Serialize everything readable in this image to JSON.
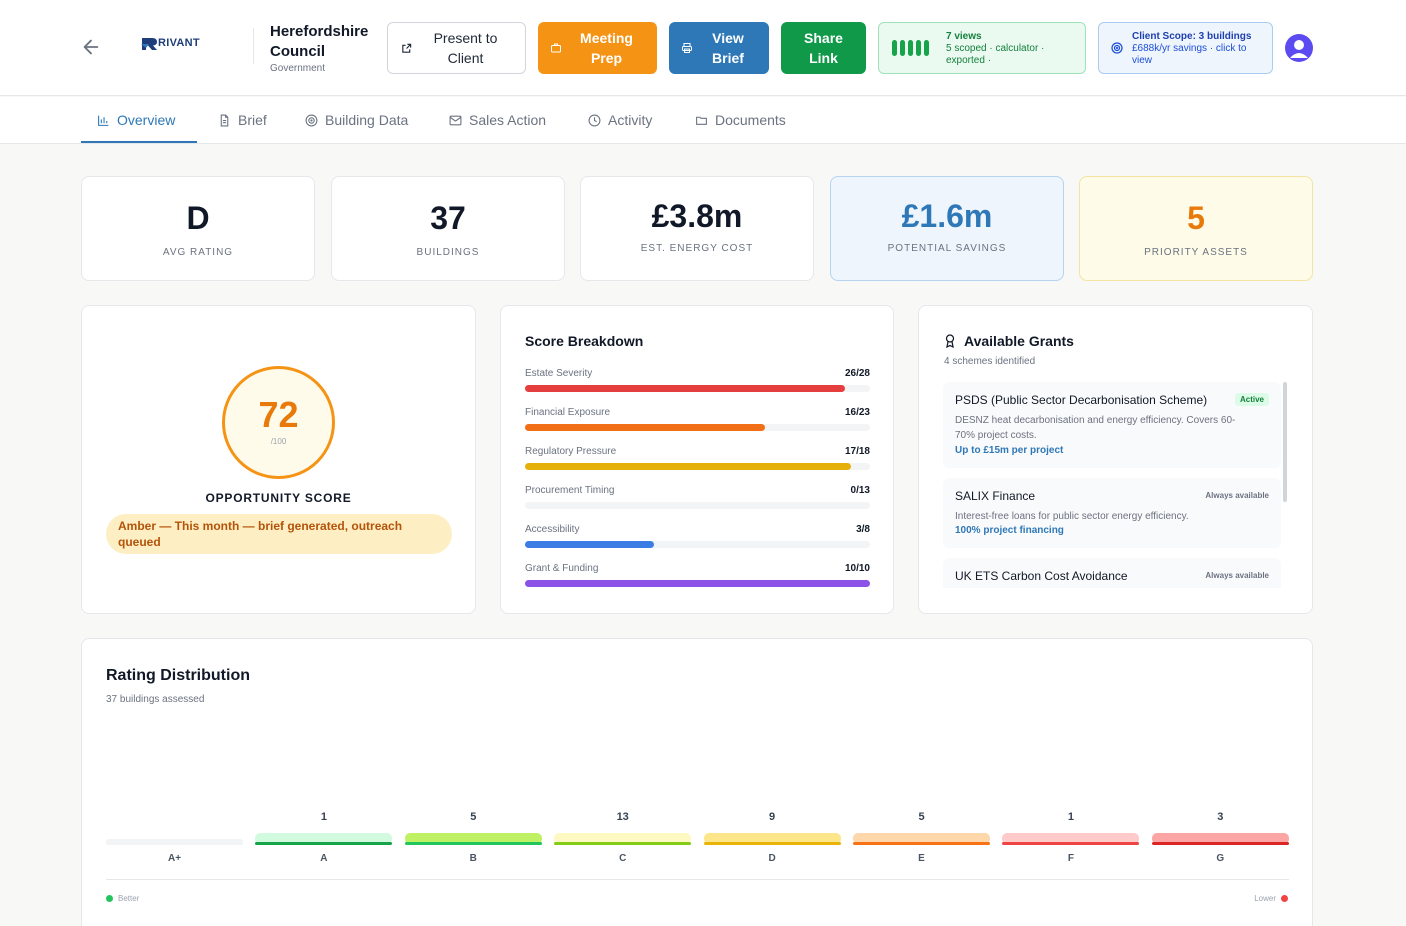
{
  "header": {
    "logo_text": "RIVANT",
    "client_name": "Herefordshire Council",
    "client_type": "Government",
    "buttons": {
      "present": "Present to Client",
      "meeting": "Meeting Prep",
      "view": "View Brief",
      "share": "Share Link"
    },
    "views": {
      "title": "7 views",
      "subtitle": "5 scoped · calculator · exported ·",
      "bar_count": 5,
      "color": "#16a34a"
    },
    "scope": {
      "title": "Client Scope: 3 buildings",
      "subtitle": "£688k/yr savings · click to view"
    },
    "avatar_color": "#5b4bf0"
  },
  "tabs": [
    {
      "label": "Overview",
      "icon": "bar-chart-icon",
      "active": true
    },
    {
      "label": "Brief",
      "icon": "document-icon",
      "active": false
    },
    {
      "label": "Building Data",
      "icon": "target-icon",
      "active": false
    },
    {
      "label": "Sales Action",
      "icon": "mail-icon",
      "active": false
    },
    {
      "label": "Activity",
      "icon": "clock-icon",
      "active": false
    },
    {
      "label": "Documents",
      "icon": "folder-icon",
      "active": false
    }
  ],
  "kpis": [
    {
      "value": "D",
      "label": "AVG RATING"
    },
    {
      "value": "37",
      "label": "BUILDINGS"
    },
    {
      "value": "£3.8m",
      "label": "EST. ENERGY COST"
    },
    {
      "value": "£1.6m",
      "label": "POTENTIAL SAVINGS"
    },
    {
      "value": "5",
      "label": "PRIORITY ASSETS"
    }
  ],
  "opportunity": {
    "score": "72",
    "out_of": "/100",
    "label": "OPPORTUNITY SCORE",
    "status": "Amber — This month — brief generated, outreach queued"
  },
  "score_breakdown": {
    "title": "Score Breakdown",
    "rows": [
      {
        "label": "Estate Severity",
        "score": 26,
        "max": 28,
        "display": "26/28",
        "color": "#e53e3e"
      },
      {
        "label": "Financial Exposure",
        "score": 16,
        "max": 23,
        "display": "16/23",
        "color": "#f06f17"
      },
      {
        "label": "Regulatory Pressure",
        "score": 17,
        "max": 18,
        "display": "17/18",
        "color": "#e6b00c"
      },
      {
        "label": "Procurement Timing",
        "score": 0,
        "max": 13,
        "display": "0/13",
        "color": "#9ca3af"
      },
      {
        "label": "Accessibility",
        "score": 3,
        "max": 8,
        "display": "3/8",
        "color": "#3b7de4"
      },
      {
        "label": "Grant & Funding",
        "score": 10,
        "max": 10,
        "display": "10/10",
        "color": "#8b52e8"
      }
    ]
  },
  "grants": {
    "title": "Available Grants",
    "subtitle": "4 schemes identified",
    "items": [
      {
        "name": "PSDS (Public Sector Decarbonisation Scheme)",
        "badge": "Active",
        "desc": "DESNZ heat decarbonisation and energy efficiency. Covers 60-70% project costs.",
        "amount": "Up to £15m per project"
      },
      {
        "name": "SALIX Finance",
        "badge": "Always available",
        "desc": "Interest-free loans for public sector energy efficiency.",
        "amount": "100% project financing"
      },
      {
        "name": "UK ETS Carbon Cost Avoidance",
        "badge": "Always available",
        "desc": "",
        "amount": ""
      }
    ]
  },
  "distribution": {
    "title": "Rating Distribution",
    "subtitle": "37 buildings assessed",
    "legend_left": "Better",
    "legend_right": "Lower",
    "ratings": [
      {
        "label": "A+",
        "count": null,
        "light": "#f3f4f6",
        "dark": "#f3f4f6"
      },
      {
        "label": "A",
        "count": 1,
        "light": "#d1fadf",
        "dark": "#16a34a"
      },
      {
        "label": "B",
        "count": 5,
        "light": "#bef264",
        "dark": "#22c55e"
      },
      {
        "label": "C",
        "count": 13,
        "light": "#fef9c3",
        "dark": "#84cc16"
      },
      {
        "label": "D",
        "count": 9,
        "light": "#fde68a",
        "dark": "#eab308"
      },
      {
        "label": "E",
        "count": 5,
        "light": "#fed7aa",
        "dark": "#f97316"
      },
      {
        "label": "F",
        "count": 1,
        "light": "#fecaca",
        "dark": "#ef4444"
      },
      {
        "label": "G",
        "count": 3,
        "light": "#fca5a5",
        "dark": "#dc2626"
      }
    ]
  }
}
